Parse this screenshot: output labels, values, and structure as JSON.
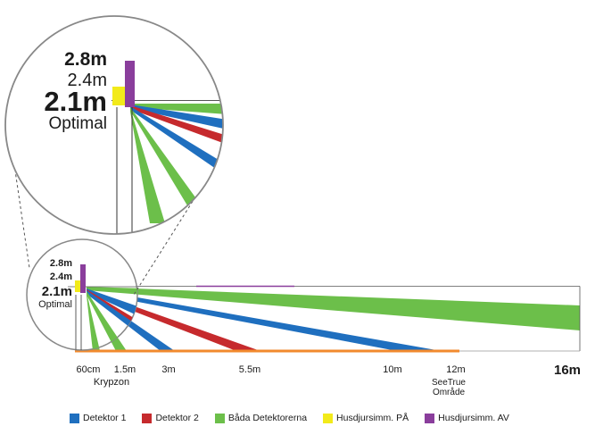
{
  "colors": {
    "detector1": "#1f6fbf",
    "detector2": "#c62a2d",
    "both": "#6cbf4a",
    "pet_on": "#f2ea1a",
    "pet_off": "#8a3e9c",
    "ground": "#f28a2e"
  },
  "heights": {
    "h1": "2.8m",
    "h2": "2.4m",
    "h3": "2.1m",
    "optimal": "Optimal"
  },
  "distances": {
    "d60cm": "60cm",
    "d15m": "1.5m",
    "d3m": "3m",
    "d55m": "5.5m",
    "d10m": "10m",
    "d12m": "12m",
    "d16m": "16m"
  },
  "zones": {
    "krypzon": "Krypzon",
    "seetrue_line1": "SeeTrue",
    "seetrue_line2": "Område"
  },
  "legend": {
    "detector1": "Detektor 1",
    "detector2": "Detektor 2",
    "both": "Båda Detektorerna",
    "pet_on": "Husdjursimm. PÅ",
    "pet_off": "Husdjursimm. AV"
  }
}
